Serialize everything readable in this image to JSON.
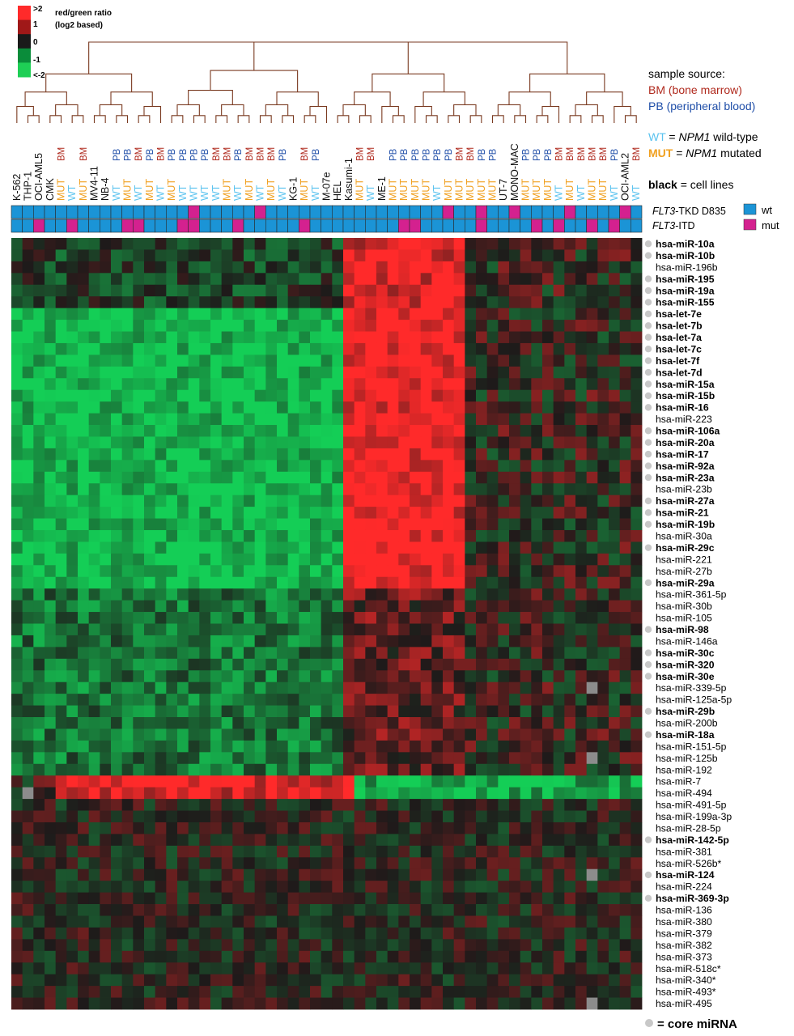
{
  "colorbar": {
    "title": [
      "red/green ratio",
      "(log2 based)"
    ],
    "ticks": [
      ">2",
      "1",
      "0",
      "-1",
      "<-2"
    ],
    "colors": [
      "#ff2a2a",
      "#a01818",
      "#1a1a1a",
      "#0a8c3a",
      "#1ecf55"
    ]
  },
  "legend": {
    "sample_source_title": "sample source:",
    "bm": "BM (bone marrow)",
    "pb": "PB (peripheral blood)",
    "wt_key": "WT",
    "wt_desc_prefix": " = ",
    "wt_desc_em": "NPM1",
    "wt_desc_suffix": " wild-type",
    "mut_key": "MUT",
    "mut_desc_prefix": " = ",
    "mut_desc_em": "NPM1",
    "mut_desc_suffix": " mutated",
    "black_key": "black",
    "black_desc": " = cell lines",
    "tkd_label_em": "FLT3",
    "tkd_label_rest": "-TKD D835",
    "itd_label_em": "FLT3",
    "itd_label_rest": "-ITD",
    "wt_box": "wt",
    "mut_box": "mut",
    "core_mirna": "= core miRNA"
  },
  "colors": {
    "bm": "#b02a1e",
    "pb": "#1f4ea8",
    "wt": "#5bc3ef",
    "mut": "#f0a020",
    "cell": "#111111",
    "flt3_wt": "#1b94d6",
    "flt3_mut": "#d4218f",
    "dendro": "#7a3a20",
    "dendro_blue": "#2a5fb0",
    "core_dot": "#c8c8c8"
  },
  "columns": [
    {
      "top": "",
      "sub": "K-562",
      "kind": "cell"
    },
    {
      "top": "",
      "sub": "THP-1",
      "kind": "cell"
    },
    {
      "top": "",
      "sub": "OCI-AML5",
      "kind": "cell"
    },
    {
      "top": "",
      "sub": "CMK",
      "kind": "cell"
    },
    {
      "top": "BM",
      "sub": "MUT",
      "kind": "bm"
    },
    {
      "top": "",
      "sub": "WT",
      "kind": "wt"
    },
    {
      "top": "BM",
      "sub": "MUT",
      "kind": "bm"
    },
    {
      "top": "",
      "sub": "MV4-11",
      "kind": "cell"
    },
    {
      "top": "",
      "sub": "NB-4",
      "kind": "cell"
    },
    {
      "top": "PB",
      "sub": "WT",
      "kind": "pb"
    },
    {
      "top": "PB",
      "sub": "MUT",
      "kind": "pb"
    },
    {
      "top": "BM",
      "sub": "WT",
      "kind": "bm"
    },
    {
      "top": "PB",
      "sub": "MUT",
      "kind": "pb"
    },
    {
      "top": "BM",
      "sub": "WT",
      "kind": "bm"
    },
    {
      "top": "PB",
      "sub": "MUT",
      "kind": "pb"
    },
    {
      "top": "PB",
      "sub": "WT",
      "kind": "pb"
    },
    {
      "top": "PB",
      "sub": "WT",
      "kind": "pb"
    },
    {
      "top": "PB",
      "sub": "WT",
      "kind": "pb"
    },
    {
      "top": "BM",
      "sub": "WT",
      "kind": "bm"
    },
    {
      "top": "BM",
      "sub": "MUT",
      "kind": "bm"
    },
    {
      "top": "PB",
      "sub": "WT",
      "kind": "pb"
    },
    {
      "top": "BM",
      "sub": "MUT",
      "kind": "bm"
    },
    {
      "top": "BM",
      "sub": "WT",
      "kind": "bm"
    },
    {
      "top": "BM",
      "sub": "MUT",
      "kind": "bm"
    },
    {
      "top": "PB",
      "sub": "WT",
      "kind": "pb"
    },
    {
      "top": "",
      "sub": "KG-1",
      "kind": "cell"
    },
    {
      "top": "BM",
      "sub": "MUT",
      "kind": "bm"
    },
    {
      "top": "PB",
      "sub": "WT",
      "kind": "pb"
    },
    {
      "top": "",
      "sub": "M-07e",
      "kind": "cell"
    },
    {
      "top": "",
      "sub": "HEL",
      "kind": "cell"
    },
    {
      "top": "",
      "sub": "Kasumi-1",
      "kind": "cell"
    },
    {
      "top": "BM",
      "sub": "MUT",
      "kind": "bm"
    },
    {
      "top": "BM",
      "sub": "WT",
      "kind": "bm"
    },
    {
      "top": "",
      "sub": "ME-1",
      "kind": "cell"
    },
    {
      "top": "PB",
      "sub": "MUT",
      "kind": "pb"
    },
    {
      "top": "PB",
      "sub": "MUT",
      "kind": "pb"
    },
    {
      "top": "PB",
      "sub": "MUT",
      "kind": "pb"
    },
    {
      "top": "PB",
      "sub": "MUT",
      "kind": "pb"
    },
    {
      "top": "PB",
      "sub": "WT",
      "kind": "pb"
    },
    {
      "top": "PB",
      "sub": "MUT",
      "kind": "pb"
    },
    {
      "top": "BM",
      "sub": "MUT",
      "kind": "bm"
    },
    {
      "top": "BM",
      "sub": "MUT",
      "kind": "bm"
    },
    {
      "top": "PB",
      "sub": "MUT",
      "kind": "pb"
    },
    {
      "top": "PB",
      "sub": "MUT",
      "kind": "pb"
    },
    {
      "top": "",
      "sub": "UT-7",
      "kind": "cell"
    },
    {
      "top": "",
      "sub": "MONO-MAC",
      "kind": "cell"
    },
    {
      "top": "PB",
      "sub": "MUT",
      "kind": "pb"
    },
    {
      "top": "PB",
      "sub": "MUT",
      "kind": "pb"
    },
    {
      "top": "PB",
      "sub": "MUT",
      "kind": "pb"
    },
    {
      "top": "BM",
      "sub": "WT",
      "kind": "bm"
    },
    {
      "top": "BM",
      "sub": "MUT",
      "kind": "bm"
    },
    {
      "top": "BM",
      "sub": "WT",
      "kind": "bm"
    },
    {
      "top": "BM",
      "sub": "MUT",
      "kind": "bm"
    },
    {
      "top": "BM",
      "sub": "MUT",
      "kind": "bm"
    },
    {
      "top": "PB",
      "sub": "WT",
      "kind": "pb"
    },
    {
      "top": "",
      "sub": "OCI-AML2",
      "kind": "cell"
    },
    {
      "top": "BM",
      "sub": "WT",
      "kind": "bm"
    }
  ],
  "flt3": {
    "tkd_mut_columns": [
      16,
      22,
      39,
      42,
      45,
      50,
      55
    ],
    "itd_mut_columns": [
      2,
      5,
      10,
      11,
      15,
      16,
      20,
      26,
      35,
      36,
      42,
      47,
      49,
      52,
      54
    ]
  },
  "rows": [
    {
      "label": "hsa-miR-10a",
      "core": true
    },
    {
      "label": "hsa-miR-10b",
      "core": true
    },
    {
      "label": "hsa-miR-196b",
      "core": false
    },
    {
      "label": "hsa-miR-195",
      "core": true
    },
    {
      "label": "hsa-miR-19a",
      "core": true
    },
    {
      "label": "hsa-miR-155",
      "core": true
    },
    {
      "label": "hsa-let-7e",
      "core": true
    },
    {
      "label": "hsa-let-7b",
      "core": true
    },
    {
      "label": "hsa-let-7a",
      "core": true
    },
    {
      "label": "hsa-let-7c",
      "core": true
    },
    {
      "label": "hsa-let-7f",
      "core": true
    },
    {
      "label": "hsa-let-7d",
      "core": true
    },
    {
      "label": "hsa-miR-15a",
      "core": true
    },
    {
      "label": "hsa-miR-15b",
      "core": true
    },
    {
      "label": "hsa-miR-16",
      "core": true
    },
    {
      "label": "hsa-miR-223",
      "core": false
    },
    {
      "label": "hsa-miR-106a",
      "core": true
    },
    {
      "label": "hsa-miR-20a",
      "core": true
    },
    {
      "label": "hsa-miR-17",
      "core": true
    },
    {
      "label": "hsa-miR-92a",
      "core": true
    },
    {
      "label": "hsa-miR-23a",
      "core": true
    },
    {
      "label": "hsa-miR-23b",
      "core": false
    },
    {
      "label": "hsa-miR-27a",
      "core": true
    },
    {
      "label": "hsa-miR-21",
      "core": true
    },
    {
      "label": "hsa-miR-19b",
      "core": true
    },
    {
      "label": "hsa-miR-30a",
      "core": false
    },
    {
      "label": "hsa-miR-29c",
      "core": true
    },
    {
      "label": "hsa-miR-221",
      "core": false
    },
    {
      "label": "hsa-miR-27b",
      "core": false
    },
    {
      "label": "hsa-miR-29a",
      "core": true
    },
    {
      "label": "hsa-miR-361-5p",
      "core": false
    },
    {
      "label": "hsa-miR-30b",
      "core": false
    },
    {
      "label": "hsa-miR-105",
      "core": false
    },
    {
      "label": "hsa-miR-98",
      "core": true
    },
    {
      "label": "hsa-miR-146a",
      "core": false
    },
    {
      "label": "hsa-miR-30c",
      "core": true
    },
    {
      "label": "hsa-miR-320",
      "core": true
    },
    {
      "label": "hsa-miR-30e",
      "core": true
    },
    {
      "label": "hsa-miR-339-5p",
      "core": false
    },
    {
      "label": "hsa-miR-125a-5p",
      "core": false
    },
    {
      "label": "hsa-miR-29b",
      "core": true
    },
    {
      "label": "hsa-miR-200b",
      "core": false
    },
    {
      "label": "hsa-miR-18a",
      "core": true
    },
    {
      "label": "hsa-miR-151-5p",
      "core": false
    },
    {
      "label": "hsa-miR-125b",
      "core": false
    },
    {
      "label": "hsa-miR-192",
      "core": false
    },
    {
      "label": "hsa-miR-7",
      "core": false
    },
    {
      "label": "hsa-miR-494",
      "core": false
    },
    {
      "label": "hsa-miR-491-5p",
      "core": false
    },
    {
      "label": "hsa-miR-199a-3p",
      "core": false
    },
    {
      "label": "hsa-miR-28-5p",
      "core": false
    },
    {
      "label": "hsa-miR-142-5p",
      "core": true
    },
    {
      "label": "hsa-miR-381",
      "core": false
    },
    {
      "label": "hsa-miR-526b*",
      "core": false
    },
    {
      "label": "hsa-miR-124",
      "core": true
    },
    {
      "label": "hsa-miR-224",
      "core": false
    },
    {
      "label": "hsa-miR-369-3p",
      "core": true
    },
    {
      "label": "hsa-miR-136",
      "core": false
    },
    {
      "label": "hsa-miR-380",
      "core": false
    },
    {
      "label": "hsa-miR-379",
      "core": false
    },
    {
      "label": "hsa-miR-382",
      "core": false
    },
    {
      "label": "hsa-miR-373",
      "core": false
    },
    {
      "label": "hsa-miR-518c*",
      "core": false
    },
    {
      "label": "hsa-miR-340*",
      "core": false
    },
    {
      "label": "hsa-miR-493*",
      "core": false
    },
    {
      "label": "hsa-miR-495",
      "core": false
    }
  ],
  "chart_data": {
    "type": "heatmap",
    "title": "",
    "value_scale": "log2 red/green ratio",
    "value_range": [
      -2,
      2
    ],
    "n_columns": 57,
    "n_rows": 66,
    "block_pattern": [
      {
        "rows": [
          0,
          5
        ],
        "cols_low": [
          0,
          29
        ],
        "level": -0.4,
        "cols_high": [
          30,
          40
        ],
        "high_level": 1.8
      },
      {
        "rows": [
          6,
          29
        ],
        "cols_low": [
          0,
          29
        ],
        "level": -1.8,
        "cols_high": [
          30,
          40
        ],
        "high_level": 2.0
      },
      {
        "rows": [
          30,
          45
        ],
        "cols_low": [
          0,
          29
        ],
        "level": -1.0,
        "cols_high": [
          30,
          40
        ],
        "high_level": 0.6
      },
      {
        "rows": [
          46,
          47
        ],
        "cols_low": [
          30,
          56
        ],
        "level": -1.6,
        "cols_high": [
          4,
          30
        ],
        "high_level": 1.8
      },
      {
        "rows": [
          48,
          65
        ],
        "cols_low": [
          0,
          56
        ],
        "level": 0.0,
        "cols_high": [],
        "high_level": 0.5
      }
    ],
    "missing_cells": [
      [
        38,
        52
      ],
      [
        44,
        52
      ],
      [
        54,
        52
      ],
      [
        65,
        52
      ],
      [
        47,
        1
      ]
    ]
  }
}
